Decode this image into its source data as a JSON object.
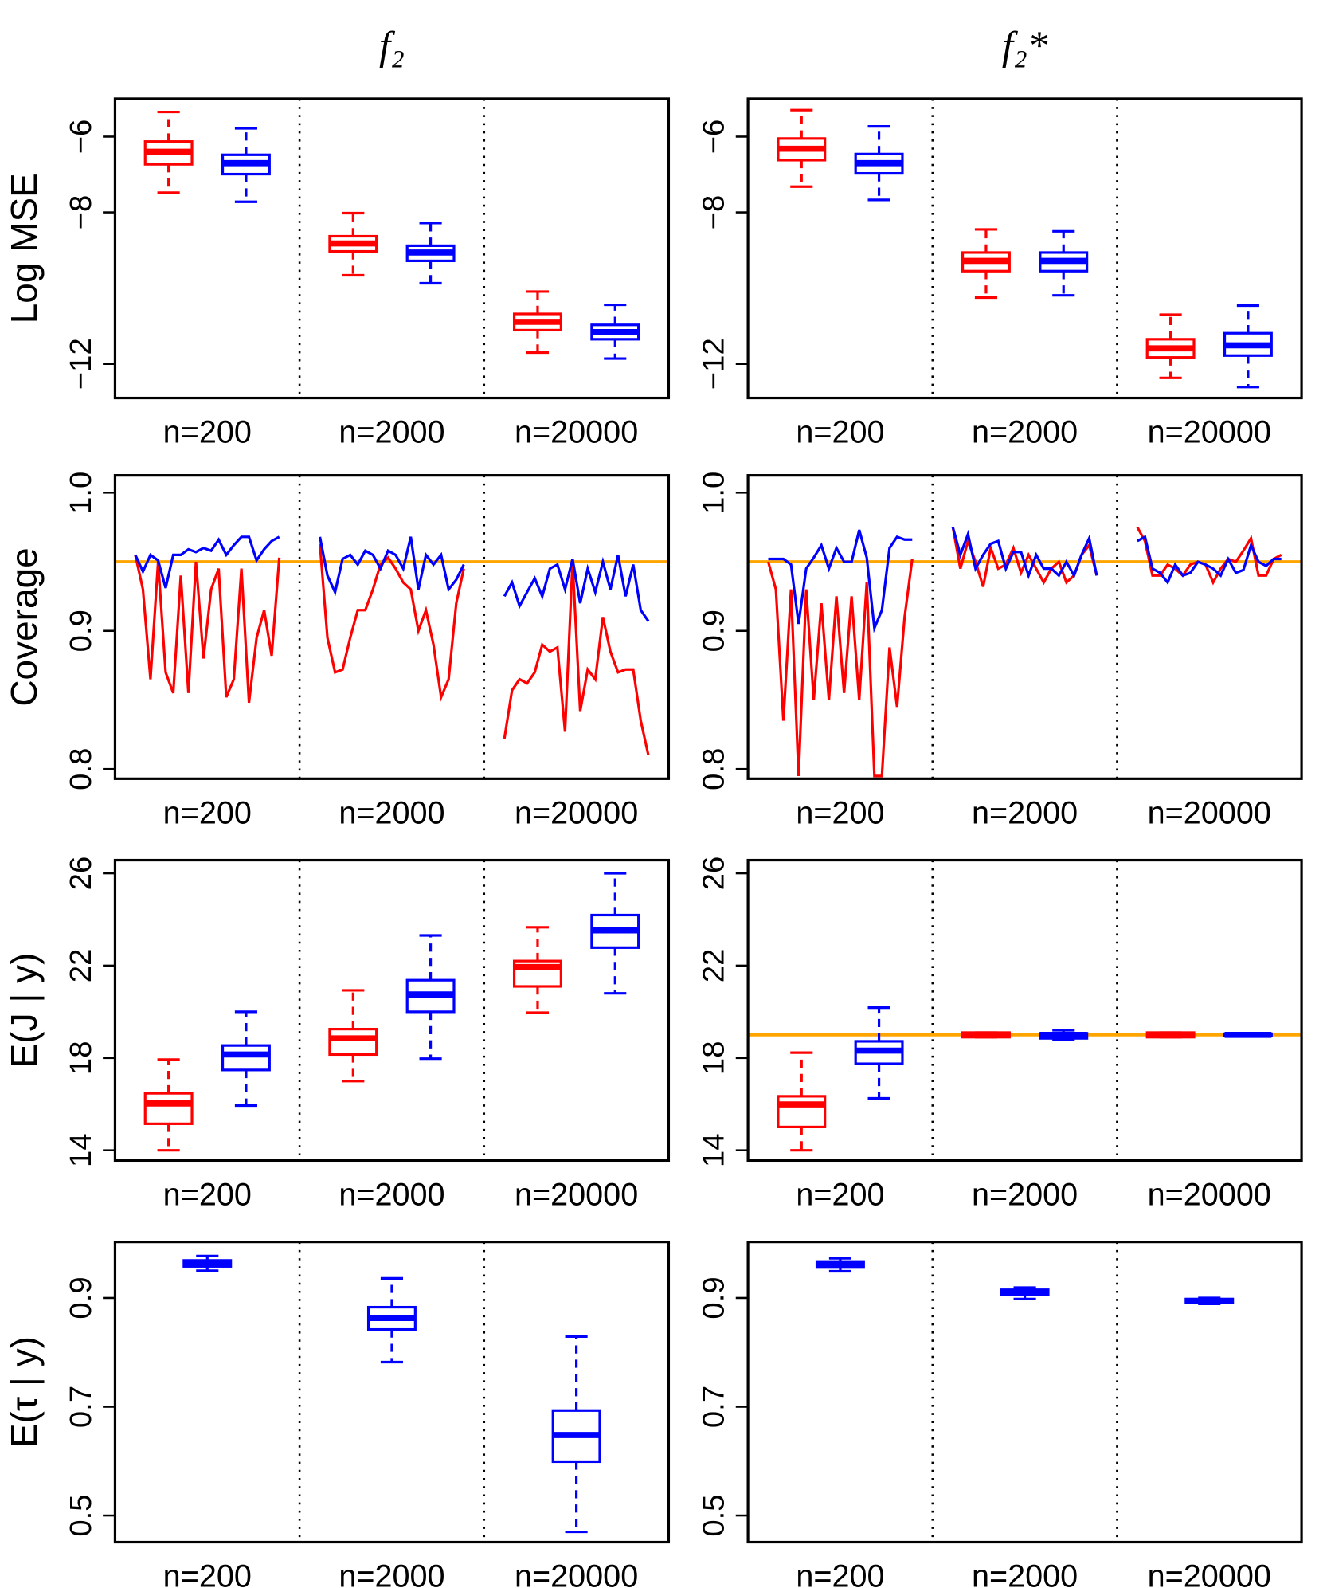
{
  "chart_data": [
    {
      "type": "box",
      "title": "f₂",
      "ylabel": "Log MSE",
      "categories": [
        "n=200",
        "n=2000",
        "n=20000"
      ],
      "ylim": [
        -12.9,
        -5.0
      ],
      "yticks": [
        {
          "value": -6,
          "label": "−6"
        },
        {
          "value": -8,
          "label": "−8"
        },
        {
          "value": -12,
          "label": "−12"
        }
      ],
      "series": [
        {
          "color": "#ff0000",
          "boxes": [
            {
              "low": -7.48,
              "q1": -6.73,
              "median": -6.4,
              "q3": -6.13,
              "high": -5.35
            },
            {
              "low": -9.66,
              "q1": -9.03,
              "median": -8.82,
              "q3": -8.63,
              "high": -8.02
            },
            {
              "low": -11.7,
              "q1": -11.11,
              "median": -10.89,
              "q3": -10.68,
              "high": -10.09
            }
          ]
        },
        {
          "color": "#0000ff",
          "boxes": [
            {
              "low": -7.72,
              "q1": -6.99,
              "median": -6.7,
              "q3": -6.48,
              "high": -5.78
            },
            {
              "low": -9.87,
              "q1": -9.28,
              "median": -9.06,
              "q3": -8.88,
              "high": -8.28
            },
            {
              "low": -11.86,
              "q1": -11.35,
              "median": -11.16,
              "q3": -10.97,
              "high": -10.44
            }
          ]
        }
      ]
    },
    {
      "type": "box",
      "title": "f₂*",
      "categories": [
        "n=200",
        "n=2000",
        "n=20000"
      ],
      "ylim": [
        -12.9,
        -5.0
      ],
      "yticks": [
        {
          "value": -6,
          "label": "−6"
        },
        {
          "value": -8,
          "label": "−8"
        },
        {
          "value": -12,
          "label": "−12"
        }
      ],
      "series": [
        {
          "color": "#ff0000",
          "boxes": [
            {
              "low": -7.32,
              "q1": -6.62,
              "median": -6.32,
              "q3": -6.05,
              "high": -5.3
            },
            {
              "low": -10.25,
              "q1": -9.55,
              "median": -9.28,
              "q3": -9.06,
              "high": -8.45
            },
            {
              "low": -12.37,
              "q1": -11.83,
              "median": -11.59,
              "q3": -11.35,
              "high": -10.7
            }
          ]
        },
        {
          "color": "#0000ff",
          "boxes": [
            {
              "low": -7.67,
              "q1": -6.97,
              "median": -6.7,
              "q3": -6.46,
              "high": -5.73
            },
            {
              "low": -10.19,
              "q1": -9.55,
              "median": -9.28,
              "q3": -9.06,
              "high": -8.5
            },
            {
              "low": -12.61,
              "q1": -11.78,
              "median": -11.51,
              "q3": -11.19,
              "high": -10.46
            }
          ]
        }
      ]
    },
    {
      "type": "line",
      "ylabel": "Coverage",
      "categories": [
        "n=200",
        "n=2000",
        "n=20000"
      ],
      "ylim": [
        0.793,
        1.0125
      ],
      "yticks": [
        0.8,
        0.9,
        {
          "value": 1,
          "label": "1.0"
        }
      ],
      "hline": 0.95,
      "hline_color": "#ffa500",
      "series": [
        {
          "color": "#ff0000",
          "values": [
            [
              0.955,
              0.93,
              0.865,
              0.95,
              0.87,
              0.855,
              0.94,
              0.855,
              0.95,
              0.88,
              0.93,
              0.945,
              0.852,
              0.865,
              0.945,
              0.848,
              0.895,
              0.915,
              0.882,
              0.953
            ],
            [
              0.963,
              0.895,
              0.87,
              0.872,
              0.895,
              0.915,
              0.915,
              0.93,
              0.948,
              0.953,
              0.945,
              0.935,
              0.93,
              0.9,
              0.915,
              0.89,
              0.852,
              0.865,
              0.92,
              0.945
            ],
            [
              0.822,
              0.857,
              0.865,
              0.862,
              0.87,
              0.89,
              0.885,
              0.888,
              0.827,
              0.95,
              0.842,
              0.872,
              0.865,
              0.91,
              0.885,
              0.87,
              0.872,
              0.872,
              0.835,
              0.81
            ]
          ]
        },
        {
          "color": "#0000ff",
          "values": [
            [
              0.955,
              0.943,
              0.955,
              0.951,
              0.931,
              0.955,
              0.955,
              0.959,
              0.957,
              0.96,
              0.958,
              0.966,
              0.955,
              0.962,
              0.968,
              0.968,
              0.951,
              0.959,
              0.965,
              0.968
            ],
            [
              0.968,
              0.94,
              0.928,
              0.952,
              0.955,
              0.948,
              0.958,
              0.955,
              0.945,
              0.958,
              0.955,
              0.945,
              0.968,
              0.93,
              0.955,
              0.948,
              0.955,
              0.93,
              0.937,
              0.948
            ],
            [
              0.925,
              0.935,
              0.918,
              0.928,
              0.938,
              0.925,
              0.945,
              0.948,
              0.93,
              0.952,
              0.92,
              0.945,
              0.928,
              0.95,
              0.93,
              0.955,
              0.925,
              0.948,
              0.915,
              0.907
            ]
          ]
        }
      ]
    },
    {
      "type": "line",
      "categories": [
        "n=200",
        "n=2000",
        "n=20000"
      ],
      "ylim": [
        0.793,
        1.0125
      ],
      "yticks": [
        0.8,
        0.9,
        {
          "value": 1,
          "label": "1.0"
        }
      ],
      "hline": 0.95,
      "hline_color": "#ffa500",
      "series": [
        {
          "color": "#ff0000",
          "values": [
            [
              0.95,
              0.93,
              0.835,
              0.93,
              0.795,
              0.93,
              0.85,
              0.92,
              0.85,
              0.925,
              0.855,
              0.925,
              0.85,
              0.935,
              0.795,
              0.795,
              0.888,
              0.845,
              0.91,
              0.952
            ],
            [
              0.975,
              0.945,
              0.965,
              0.95,
              0.932,
              0.96,
              0.945,
              0.948,
              0.96,
              0.942,
              0.955,
              0.945,
              0.935,
              0.945,
              0.95,
              0.935,
              0.94,
              0.955,
              0.962,
              0.94
            ],
            [
              0.975,
              0.965,
              0.94,
              0.94,
              0.948,
              0.945,
              0.94,
              0.948,
              0.95,
              0.948,
              0.935,
              0.945,
              0.952,
              0.95,
              0.958,
              0.967,
              0.94,
              0.94,
              0.952,
              0.955
            ]
          ]
        },
        {
          "color": "#0000ff",
          "values": [
            [
              0.952,
              0.952,
              0.952,
              0.948,
              0.905,
              0.945,
              0.953,
              0.962,
              0.945,
              0.96,
              0.95,
              0.95,
              0.973,
              0.953,
              0.902,
              0.915,
              0.96,
              0.968,
              0.966,
              0.966
            ],
            [
              0.975,
              0.955,
              0.97,
              0.945,
              0.955,
              0.963,
              0.965,
              0.945,
              0.957,
              0.957,
              0.94,
              0.955,
              0.945,
              0.945,
              0.94,
              0.95,
              0.94,
              0.955,
              0.967,
              0.94
            ],
            [
              0.965,
              0.968,
              0.945,
              0.942,
              0.935,
              0.948,
              0.94,
              0.942,
              0.95,
              0.948,
              0.945,
              0.94,
              0.952,
              0.942,
              0.944,
              0.962,
              0.95,
              0.947,
              0.952,
              0.952
            ]
          ]
        }
      ]
    },
    {
      "type": "box",
      "ylabel": "E(J | y)",
      "categories": [
        "n=200",
        "n=2000",
        "n=20000"
      ],
      "ylim": [
        13.56,
        26.57
      ],
      "yticks": [
        14,
        18,
        22,
        26
      ],
      "series": [
        {
          "color": "#ff0000",
          "boxes": [
            {
              "low": 14.0,
              "q1": 15.15,
              "median": 16.03,
              "q3": 16.47,
              "high": 17.93
            },
            {
              "low": 17.0,
              "q1": 18.15,
              "median": 18.85,
              "q3": 19.25,
              "high": 20.93
            },
            {
              "low": 19.96,
              "q1": 21.1,
              "median": 21.94,
              "q3": 22.2,
              "high": 23.66
            }
          ]
        },
        {
          "color": "#0000ff",
          "boxes": [
            {
              "low": 15.94,
              "q1": 17.48,
              "median": 18.15,
              "q3": 18.54,
              "high": 20.0
            },
            {
              "low": 17.97,
              "q1": 20.0,
              "median": 20.75,
              "q3": 21.37,
              "high": 23.31
            },
            {
              "low": 20.8,
              "q1": 22.78,
              "median": 23.53,
              "q3": 24.19,
              "high": 26.0
            }
          ]
        }
      ]
    },
    {
      "type": "box",
      "categories": [
        "n=200",
        "n=2000",
        "n=20000"
      ],
      "ylim": [
        13.56,
        26.57
      ],
      "yticks": [
        14,
        18,
        22,
        26
      ],
      "hline": 19,
      "hline_color": "#ffa500",
      "series": [
        {
          "color": "#ff0000",
          "boxes": [
            {
              "low": 14.0,
              "q1": 15.01,
              "median": 15.99,
              "q3": 16.34,
              "high": 18.23
            },
            {
              "low": 18.9,
              "q1": 18.9,
              "median": 19.0,
              "q3": 19.1,
              "high": 19.1
            },
            {
              "low": 18.9,
              "q1": 18.9,
              "median": 19.0,
              "q3": 19.1,
              "high": 19.1
            }
          ]
        },
        {
          "color": "#0000ff",
          "boxes": [
            {
              "low": 16.25,
              "q1": 17.75,
              "median": 18.32,
              "q3": 18.72,
              "high": 20.18
            },
            {
              "low": 18.8,
              "q1": 18.85,
              "median": 19.0,
              "q3": 19.07,
              "high": 19.2
            },
            {
              "low": 18.95,
              "q1": 18.95,
              "median": 19.0,
              "q3": 19.05,
              "high": 19.05
            }
          ]
        }
      ]
    },
    {
      "type": "box",
      "ylabel": "E(τ | y)",
      "categories": [
        "n=200",
        "n=2000",
        "n=20000"
      ],
      "ylim": [
        0.451,
        1.003
      ],
      "yticks": [
        0.5,
        0.7,
        0.9
      ],
      "series": [
        {
          "color": "#0000ff",
          "boxes": [
            {
              "low": 0.95,
              "q1": 0.958,
              "median": 0.964,
              "q3": 0.969,
              "high": 0.977
            },
            {
              "low": 0.782,
              "q1": 0.842,
              "median": 0.863,
              "q3": 0.883,
              "high": 0.936
            },
            {
              "low": 0.47,
              "q1": 0.599,
              "median": 0.648,
              "q3": 0.693,
              "high": 0.829
            }
          ]
        }
      ]
    },
    {
      "type": "box",
      "categories": [
        "n=200",
        "n=2000",
        "n=20000"
      ],
      "ylim": [
        0.451,
        1.003
      ],
      "yticks": [
        0.5,
        0.7,
        0.9
      ],
      "series": [
        {
          "color": "#0000ff",
          "boxes": [
            {
              "low": 0.949,
              "q1": 0.956,
              "median": 0.962,
              "q3": 0.967,
              "high": 0.973
            },
            {
              "low": 0.898,
              "q1": 0.906,
              "median": 0.911,
              "q3": 0.915,
              "high": 0.919
            },
            {
              "low": 0.889,
              "q1": 0.891,
              "median": 0.894,
              "q3": 0.898,
              "high": 0.9
            }
          ]
        }
      ]
    }
  ]
}
